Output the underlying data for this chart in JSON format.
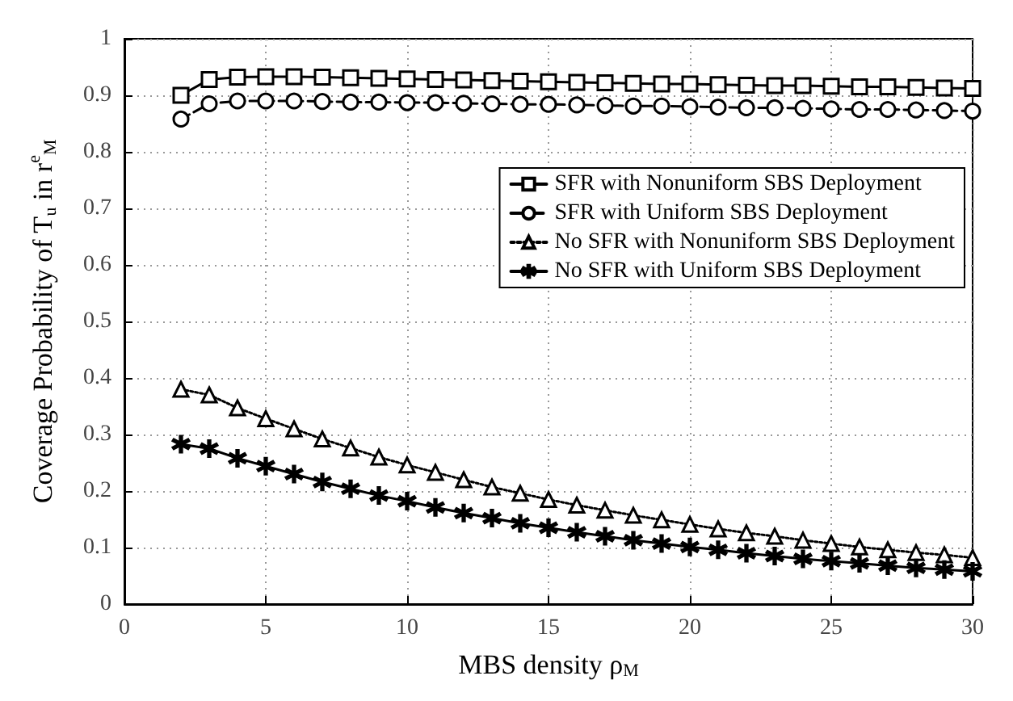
{
  "chart_data": {
    "type": "line",
    "xlabel": "MBS density ρ$_{M}$",
    "ylabel": "Coverage Probability of T$_{u}$ in r$^{e}$$_{M}$",
    "x": [
      2,
      3,
      4,
      5,
      6,
      7,
      8,
      9,
      10,
      11,
      12,
      13,
      14,
      15,
      16,
      17,
      18,
      19,
      20,
      21,
      22,
      23,
      24,
      25,
      26,
      27,
      28,
      29,
      30
    ],
    "series": [
      {
        "name": "SFR with Nonuniform SBS Deployment",
        "color": "#000000",
        "marker": "square",
        "line_style": "solid",
        "values": [
          0.9,
          0.928,
          0.932,
          0.933,
          0.933,
          0.932,
          0.931,
          0.93,
          0.929,
          0.928,
          0.927,
          0.926,
          0.925,
          0.924,
          0.923,
          0.922,
          0.921,
          0.92,
          0.92,
          0.919,
          0.918,
          0.917,
          0.917,
          0.916,
          0.915,
          0.915,
          0.914,
          0.913,
          0.912
        ]
      },
      {
        "name": "SFR with Uniform SBS Deployment",
        "color": "#000000",
        "marker": "circle",
        "line_style": "dashed",
        "values": [
          0.858,
          0.885,
          0.89,
          0.89,
          0.89,
          0.889,
          0.888,
          0.888,
          0.887,
          0.887,
          0.886,
          0.885,
          0.884,
          0.884,
          0.883,
          0.882,
          0.881,
          0.881,
          0.88,
          0.879,
          0.878,
          0.878,
          0.877,
          0.876,
          0.875,
          0.875,
          0.874,
          0.873,
          0.872
        ]
      },
      {
        "name": "No SFR with Nonuniform SBS Deployment",
        "color": "#000000",
        "marker": "triangle",
        "line_style": "dotted",
        "values": [
          0.38,
          0.37,
          0.347,
          0.328,
          0.31,
          0.292,
          0.276,
          0.26,
          0.246,
          0.233,
          0.22,
          0.207,
          0.196,
          0.185,
          0.175,
          0.166,
          0.157,
          0.149,
          0.141,
          0.133,
          0.126,
          0.12,
          0.113,
          0.107,
          0.101,
          0.096,
          0.091,
          0.087,
          0.082
        ]
      },
      {
        "name": "No SFR with Uniform SBS Deployment",
        "color": "#000000",
        "marker": "star",
        "line_style": "solid",
        "values": [
          0.283,
          0.275,
          0.258,
          0.244,
          0.23,
          0.216,
          0.204,
          0.192,
          0.182,
          0.171,
          0.161,
          0.152,
          0.143,
          0.135,
          0.127,
          0.12,
          0.113,
          0.107,
          0.101,
          0.096,
          0.09,
          0.085,
          0.08,
          0.076,
          0.072,
          0.068,
          0.064,
          0.061,
          0.058
        ]
      }
    ],
    "xlim": [
      0,
      30
    ],
    "xticks": [
      0,
      5,
      10,
      15,
      20,
      25,
      30
    ],
    "ylim": [
      0,
      1
    ],
    "yticks": [
      0,
      0.1,
      0.2,
      0.3,
      0.4,
      0.5,
      0.6,
      0.7,
      0.8,
      0.9,
      1
    ],
    "grid": true,
    "legend": "right"
  }
}
